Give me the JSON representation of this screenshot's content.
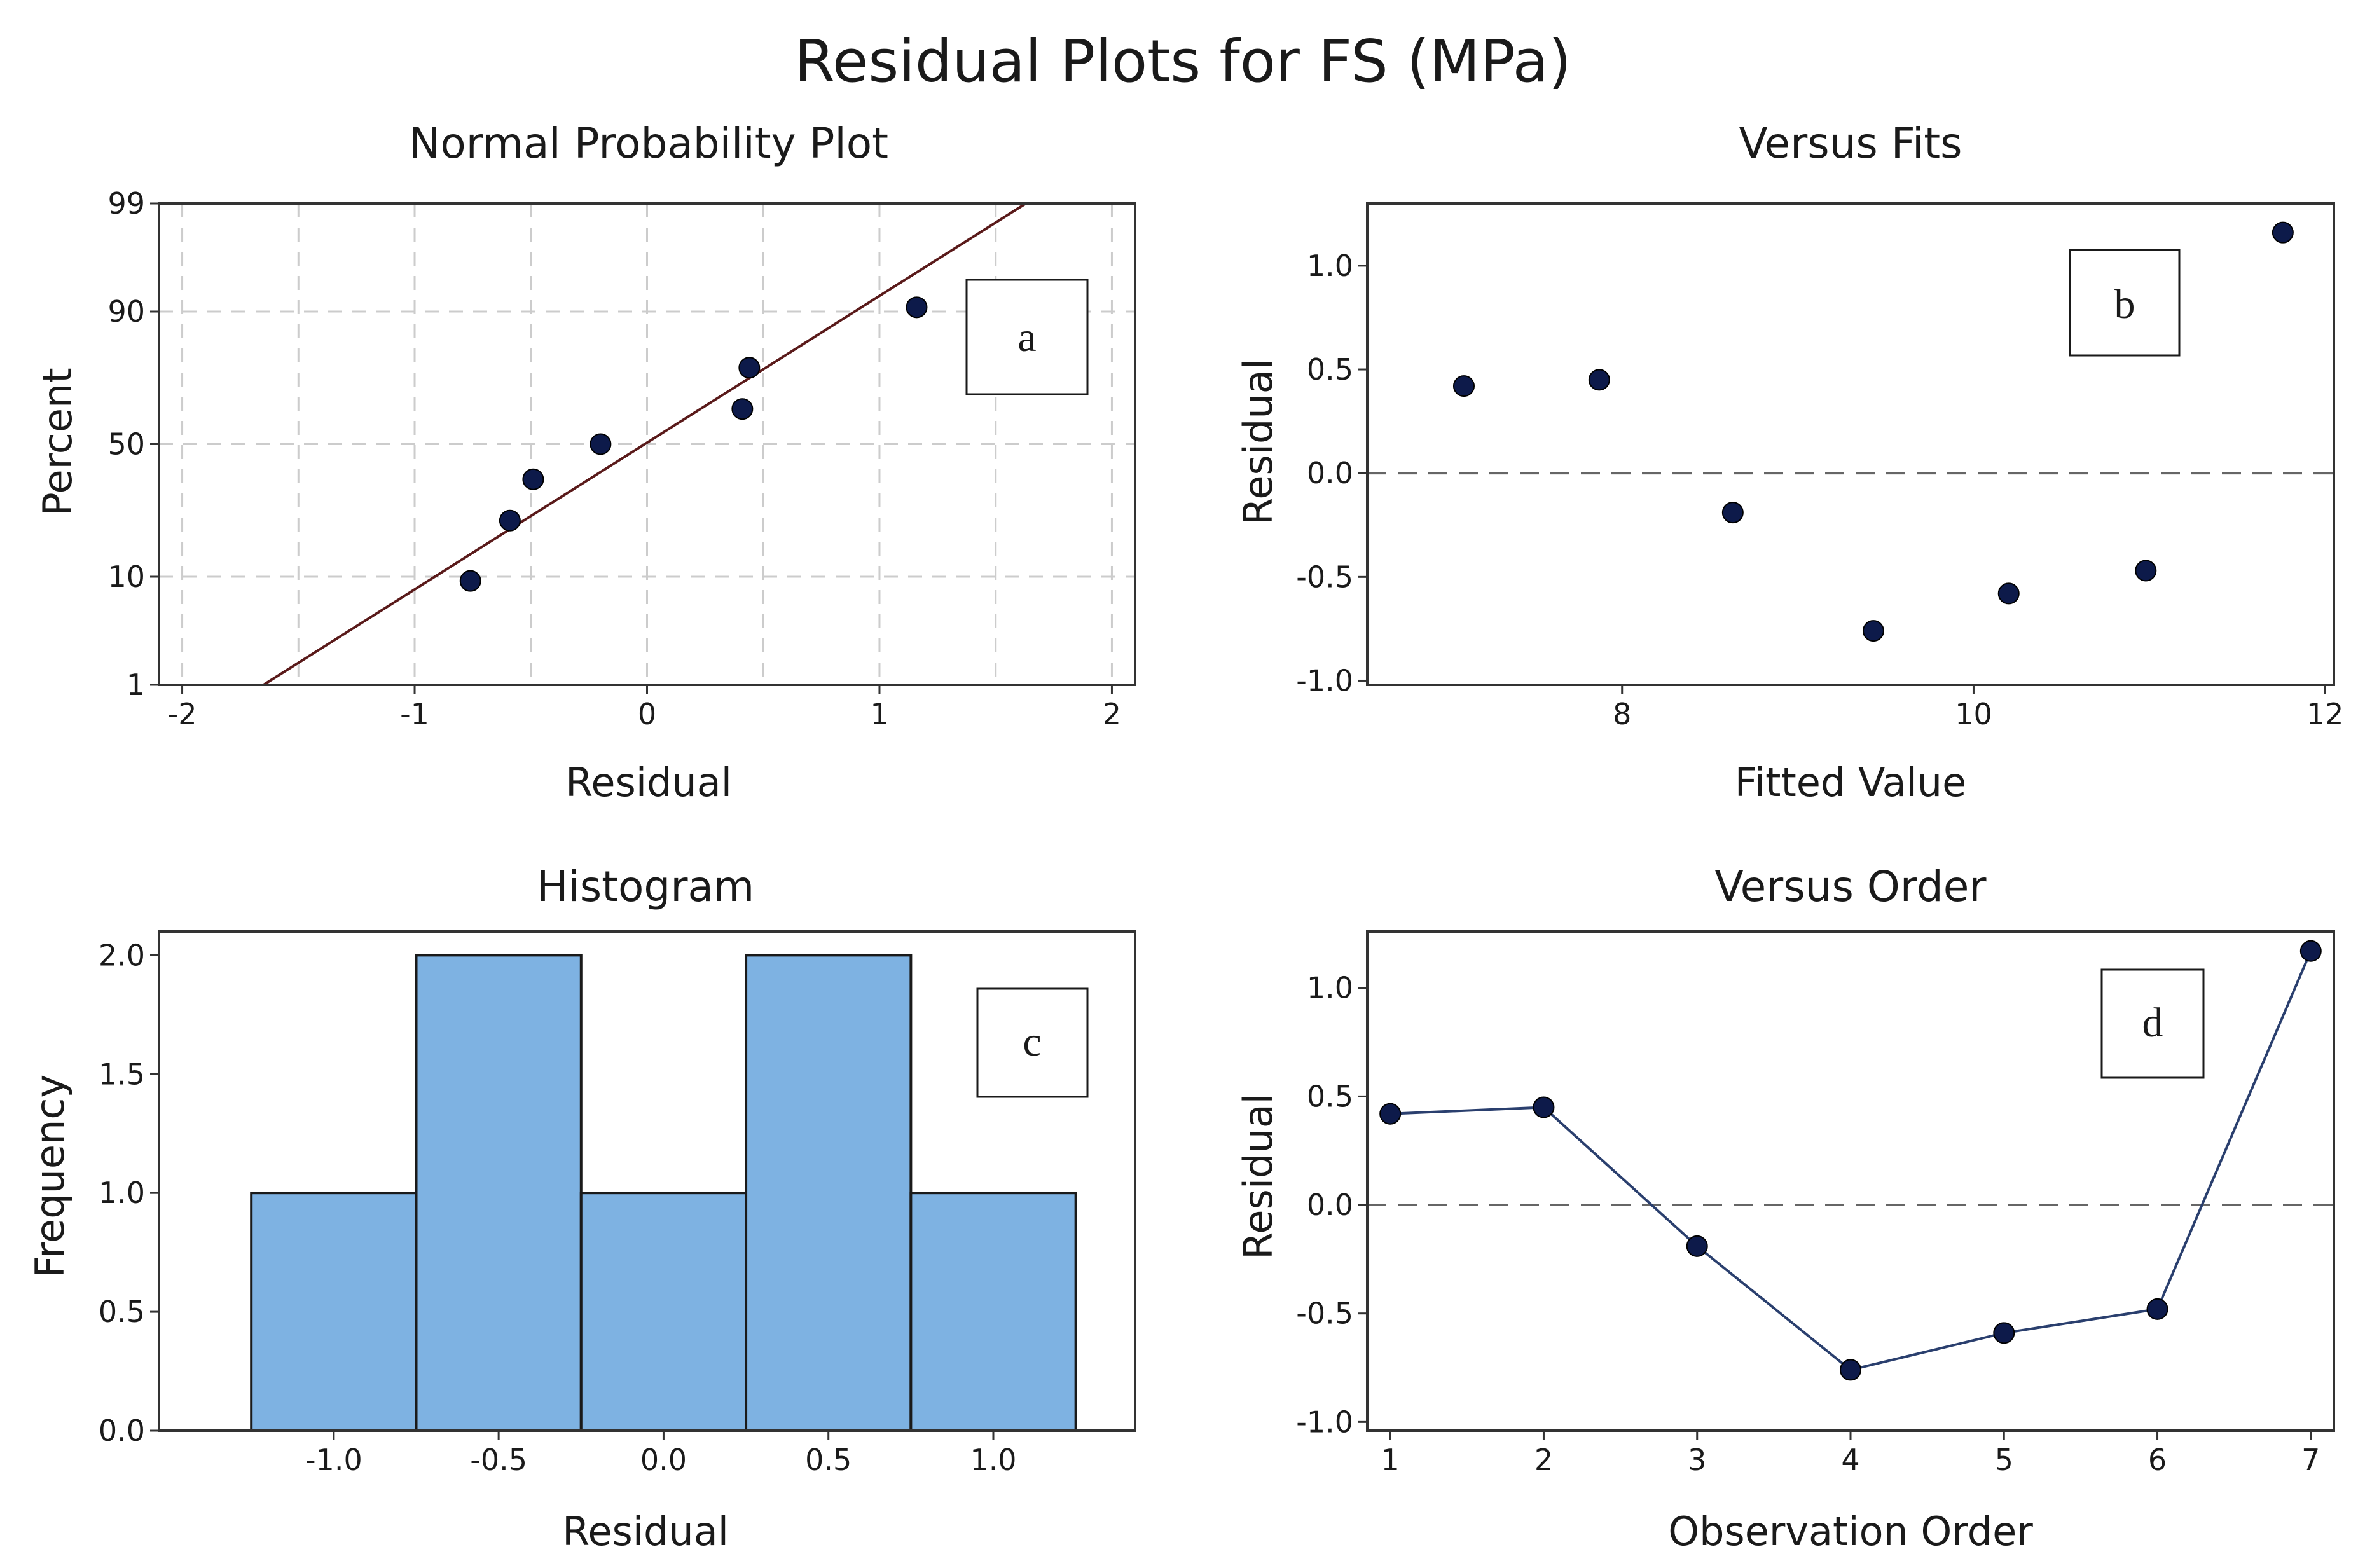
{
  "title": "Residual Plots for FS (MPa)",
  "colors": {
    "marker": "#0d1a4a",
    "fit_line": "#5a1a1a",
    "bar_fill": "#7eb2e2",
    "bar_edge": "#1a1a1a",
    "grid": "#cccccc",
    "ref_line": "#666666",
    "series_line": "#2a3f6e"
  },
  "chart_data": [
    {
      "id": "a",
      "type": "scatter",
      "title": "Normal Probability Plot",
      "xlabel": "Residual",
      "ylabel": "Percent",
      "letter": "a",
      "xlim": [
        -2.1,
        2.1
      ],
      "x_ticks": [
        -2,
        -1,
        0,
        1,
        2
      ],
      "x_tick_labels": [
        "-2",
        "-1",
        "0",
        "1",
        "2"
      ],
      "y_ticks": [
        1,
        10,
        50,
        90,
        99
      ],
      "y_tick_labels": [
        "1",
        "10",
        "50",
        "90",
        "99"
      ],
      "y_scale": "normal-probability",
      "grid": true,
      "x_gridlines": [
        -2,
        -1.5,
        -1,
        -0.5,
        0,
        0.5,
        1,
        1.5,
        2
      ],
      "y_gridlines": [
        10,
        50,
        90
      ],
      "points": [
        {
          "x": -0.76,
          "y": 9.3
        },
        {
          "x": -0.59,
          "y": 23.0
        },
        {
          "x": -0.49,
          "y": 36.7
        },
        {
          "x": -0.2,
          "y": 50.0
        },
        {
          "x": 0.41,
          "y": 63.3
        },
        {
          "x": 0.44,
          "y": 77.0
        },
        {
          "x": 1.16,
          "y": 90.7
        }
      ],
      "fit_line": {
        "x1": -1.65,
        "y1": 1,
        "x2": 1.63,
        "y2": 99
      }
    },
    {
      "id": "b",
      "type": "scatter",
      "title": "Versus Fits",
      "xlabel": "Fitted Value",
      "ylabel": "Residual",
      "letter": "b",
      "xlim": [
        6.55,
        12.05
      ],
      "ylim": [
        -1.02,
        1.3
      ],
      "x_ticks": [
        8,
        10,
        12
      ],
      "x_tick_labels": [
        "8",
        "10",
        "12"
      ],
      "y_ticks": [
        -1.0,
        -0.5,
        0.0,
        0.5,
        1.0
      ],
      "y_tick_labels": [
        "-1.0",
        "-0.5",
        "0.0",
        "0.5",
        "1.0"
      ],
      "reference_line": 0,
      "points": [
        {
          "x": 7.1,
          "y": 0.42
        },
        {
          "x": 7.87,
          "y": 0.45
        },
        {
          "x": 8.63,
          "y": -0.19
        },
        {
          "x": 9.43,
          "y": -0.76
        },
        {
          "x": 10.2,
          "y": -0.58
        },
        {
          "x": 10.98,
          "y": -0.47
        },
        {
          "x": 11.76,
          "y": 1.16
        }
      ]
    },
    {
      "id": "c",
      "type": "bar",
      "title": "Histogram",
      "xlabel": "Residual",
      "ylabel": "Frequency",
      "letter": "c",
      "xlim": [
        -1.53,
        1.43
      ],
      "ylim": [
        0,
        2.1
      ],
      "x_ticks": [
        -1.0,
        -0.5,
        0.0,
        0.5,
        1.0
      ],
      "x_tick_labels": [
        "-1.0",
        "-0.5",
        "0.0",
        "0.5",
        "1.0"
      ],
      "y_ticks": [
        0.0,
        0.5,
        1.0,
        1.5,
        2.0
      ],
      "y_tick_labels": [
        "0.0",
        "0.5",
        "1.0",
        "1.5",
        "2.0"
      ],
      "bins": [
        {
          "from": -1.25,
          "to": -0.75,
          "count": 1
        },
        {
          "from": -0.75,
          "to": -0.25,
          "count": 2
        },
        {
          "from": -0.25,
          "to": 0.25,
          "count": 1
        },
        {
          "from": 0.25,
          "to": 0.75,
          "count": 2
        },
        {
          "from": 0.75,
          "to": 1.25,
          "count": 1
        }
      ]
    },
    {
      "id": "d",
      "type": "line",
      "title": "Versus Order",
      "xlabel": "Observation Order",
      "ylabel": "Residual",
      "letter": "d",
      "xlim": [
        0.85,
        7.15
      ],
      "ylim": [
        -1.04,
        1.26
      ],
      "x_ticks": [
        1,
        2,
        3,
        4,
        5,
        6,
        7
      ],
      "x_tick_labels": [
        "1",
        "2",
        "3",
        "4",
        "5",
        "6",
        "7"
      ],
      "y_ticks": [
        -1.0,
        -0.5,
        0.0,
        0.5,
        1.0
      ],
      "y_tick_labels": [
        "-1.0",
        "-0.5",
        "0.0",
        "0.5",
        "1.0"
      ],
      "reference_line": 0,
      "points": [
        {
          "x": 1,
          "y": 0.42
        },
        {
          "x": 2,
          "y": 0.45
        },
        {
          "x": 3,
          "y": -0.19
        },
        {
          "x": 4,
          "y": -0.76
        },
        {
          "x": 5,
          "y": -0.59
        },
        {
          "x": 6,
          "y": -0.48
        },
        {
          "x": 7,
          "y": 1.17
        }
      ]
    }
  ]
}
